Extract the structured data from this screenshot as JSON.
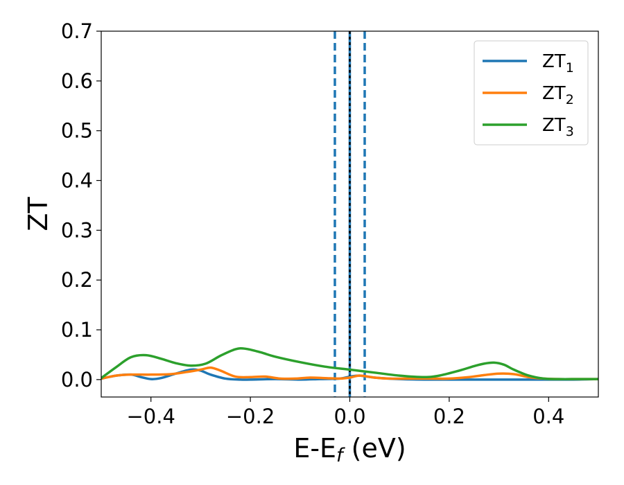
{
  "chart_data": {
    "type": "line",
    "xlabel": "E-E",
    "xlabel_sub": "f",
    "xlabel_unit": " (eV)",
    "ylabel": "ZT",
    "xlim": [
      -0.5,
      0.5
    ],
    "ylim": [
      -0.035,
      0.7
    ],
    "xticks": [
      -0.4,
      -0.2,
      0.0,
      0.2,
      0.4
    ],
    "xtick_labels": [
      "−0.4",
      "−0.2",
      "0.0",
      "0.2",
      "0.4"
    ],
    "yticks": [
      0.0,
      0.1,
      0.2,
      0.3,
      0.4,
      0.5,
      0.6,
      0.7
    ],
    "ytick_labels": [
      "0.0",
      "0.1",
      "0.2",
      "0.3",
      "0.4",
      "0.5",
      "0.6",
      "0.7"
    ],
    "grid": false,
    "legend_position": "top-right",
    "series": [
      {
        "name": "ZT",
        "name_sub": "1",
        "color": "#1f77b4",
        "x": [
          -0.5,
          -0.47,
          -0.44,
          -0.42,
          -0.4,
          -0.38,
          -0.35,
          -0.32,
          -0.3,
          -0.28,
          -0.25,
          -0.22,
          -0.2,
          -0.15,
          -0.1,
          -0.06,
          -0.02,
          0.0,
          0.02,
          0.05,
          0.1,
          0.15,
          0.2,
          0.25,
          0.3,
          0.35,
          0.4,
          0.45,
          0.5
        ],
        "y": [
          0.002,
          0.008,
          0.01,
          0.005,
          0.001,
          0.003,
          0.012,
          0.02,
          0.018,
          0.01,
          0.002,
          0.0,
          0.0,
          0.001,
          0.0,
          0.001,
          0.002,
          0.006,
          0.008,
          0.004,
          0.001,
          0.0,
          0.0,
          0.0,
          0.0,
          0.0,
          0.0,
          0.0,
          0.001
        ]
      },
      {
        "name": "ZT",
        "name_sub": "2",
        "color": "#ff7f0e",
        "x": [
          -0.5,
          -0.47,
          -0.44,
          -0.4,
          -0.36,
          -0.33,
          -0.3,
          -0.28,
          -0.26,
          -0.23,
          -0.2,
          -0.17,
          -0.14,
          -0.11,
          -0.08,
          -0.05,
          -0.02,
          0.0,
          0.02,
          0.05,
          0.08,
          0.12,
          0.16,
          0.2,
          0.24,
          0.27,
          0.3,
          0.33,
          0.36,
          0.39,
          0.42,
          0.46,
          0.5
        ],
        "y": [
          0.002,
          0.008,
          0.01,
          0.01,
          0.011,
          0.015,
          0.02,
          0.024,
          0.018,
          0.006,
          0.005,
          0.006,
          0.002,
          0.002,
          0.004,
          0.003,
          0.002,
          0.004,
          0.008,
          0.004,
          0.002,
          0.002,
          0.002,
          0.002,
          0.005,
          0.009,
          0.012,
          0.011,
          0.005,
          0.002,
          0.001,
          0.001,
          0.001
        ]
      },
      {
        "name": "ZT",
        "name_sub": "3",
        "color": "#2ca02c",
        "x": [
          -0.5,
          -0.47,
          -0.44,
          -0.41,
          -0.38,
          -0.35,
          -0.32,
          -0.29,
          -0.26,
          -0.23,
          -0.21,
          -0.18,
          -0.15,
          -0.1,
          -0.05,
          0.0,
          0.05,
          0.1,
          0.15,
          0.18,
          0.22,
          0.25,
          0.27,
          0.29,
          0.31,
          0.33,
          0.36,
          0.39,
          0.42,
          0.46,
          0.5
        ],
        "y": [
          0.003,
          0.025,
          0.045,
          0.049,
          0.042,
          0.033,
          0.028,
          0.032,
          0.048,
          0.061,
          0.062,
          0.055,
          0.046,
          0.035,
          0.026,
          0.02,
          0.014,
          0.008,
          0.005,
          0.008,
          0.018,
          0.027,
          0.032,
          0.034,
          0.03,
          0.02,
          0.008,
          0.002,
          0.001,
          0.001,
          0.001
        ]
      }
    ],
    "vlines": [
      {
        "x": 0.0,
        "color": "#000000",
        "style": "dotted"
      },
      {
        "x": 0.0,
        "color": "#1f77b4",
        "style": "solid"
      },
      {
        "x": -0.03,
        "color": "#1f77b4",
        "style": "dashed"
      },
      {
        "x": 0.03,
        "color": "#1f77b4",
        "style": "dashed"
      }
    ]
  }
}
